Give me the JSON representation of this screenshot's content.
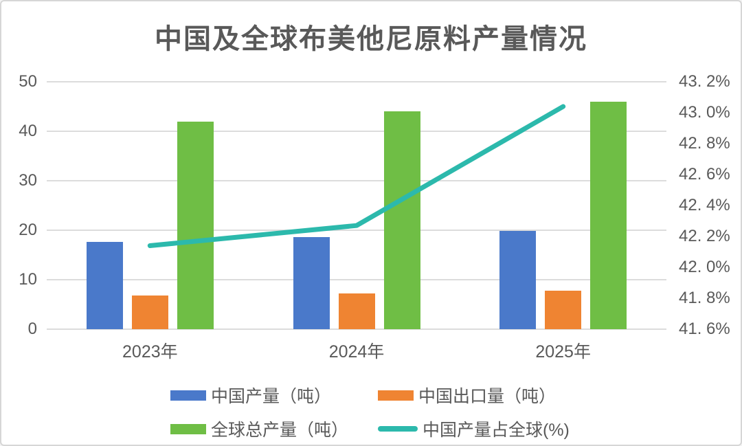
{
  "title": "中国及全球布美他尼原料产量情况",
  "colors": {
    "china_production": "#4a79ca",
    "china_export": "#ef8432",
    "global_production": "#6fbe45",
    "china_share_line": "#2cb9ac",
    "text": "#595959",
    "gridline": "#dcdcdc"
  },
  "chart_data": {
    "type": "combo-bar-line",
    "title": "中国及全球布美他尼原料产量情况",
    "categories": [
      "2023年",
      "2024年",
      "2025年"
    ],
    "bar_series": [
      {
        "name": "中国产量（吨）",
        "values": [
          17.7,
          18.6,
          19.8
        ],
        "color": "#4a79ca"
      },
      {
        "name": "中国出口量（吨）",
        "values": [
          6.8,
          7.2,
          7.8
        ],
        "color": "#ef8432"
      },
      {
        "name": "全球总产量（吨）",
        "values": [
          42,
          44,
          46
        ],
        "color": "#6fbe45"
      }
    ],
    "line_series": {
      "name": "中国产量占全球(%)",
      "values": [
        42.14,
        42.27,
        43.04
      ],
      "color": "#2cb9ac",
      "axis": "right"
    },
    "left_axis": {
      "min": 0,
      "max": 50,
      "step": 10,
      "tick_labels": [
        "0",
        "10",
        "20",
        "30",
        "40",
        "50"
      ]
    },
    "right_axis": {
      "min": 41.6,
      "max": 43.2,
      "step": 0.2,
      "tick_labels": [
        "41. 6%",
        "41. 8%",
        "42. 0%",
        "42. 2%",
        "42. 4%",
        "42. 6%",
        "42. 8%",
        "43. 0%",
        "43. 2%"
      ]
    },
    "gridlines": true,
    "legend_position": "bottom"
  },
  "legend": {
    "items": [
      {
        "label": "中国产量（吨）",
        "color": "#4a79ca",
        "swatch": "bar"
      },
      {
        "label": "中国出口量（吨）",
        "color": "#ef8432",
        "swatch": "bar"
      },
      {
        "label": "全球总产量（吨）",
        "color": "#6fbe45",
        "swatch": "bar"
      },
      {
        "label": "中国产量占全球(%)",
        "color": "#2cb9ac",
        "swatch": "line"
      }
    ]
  }
}
